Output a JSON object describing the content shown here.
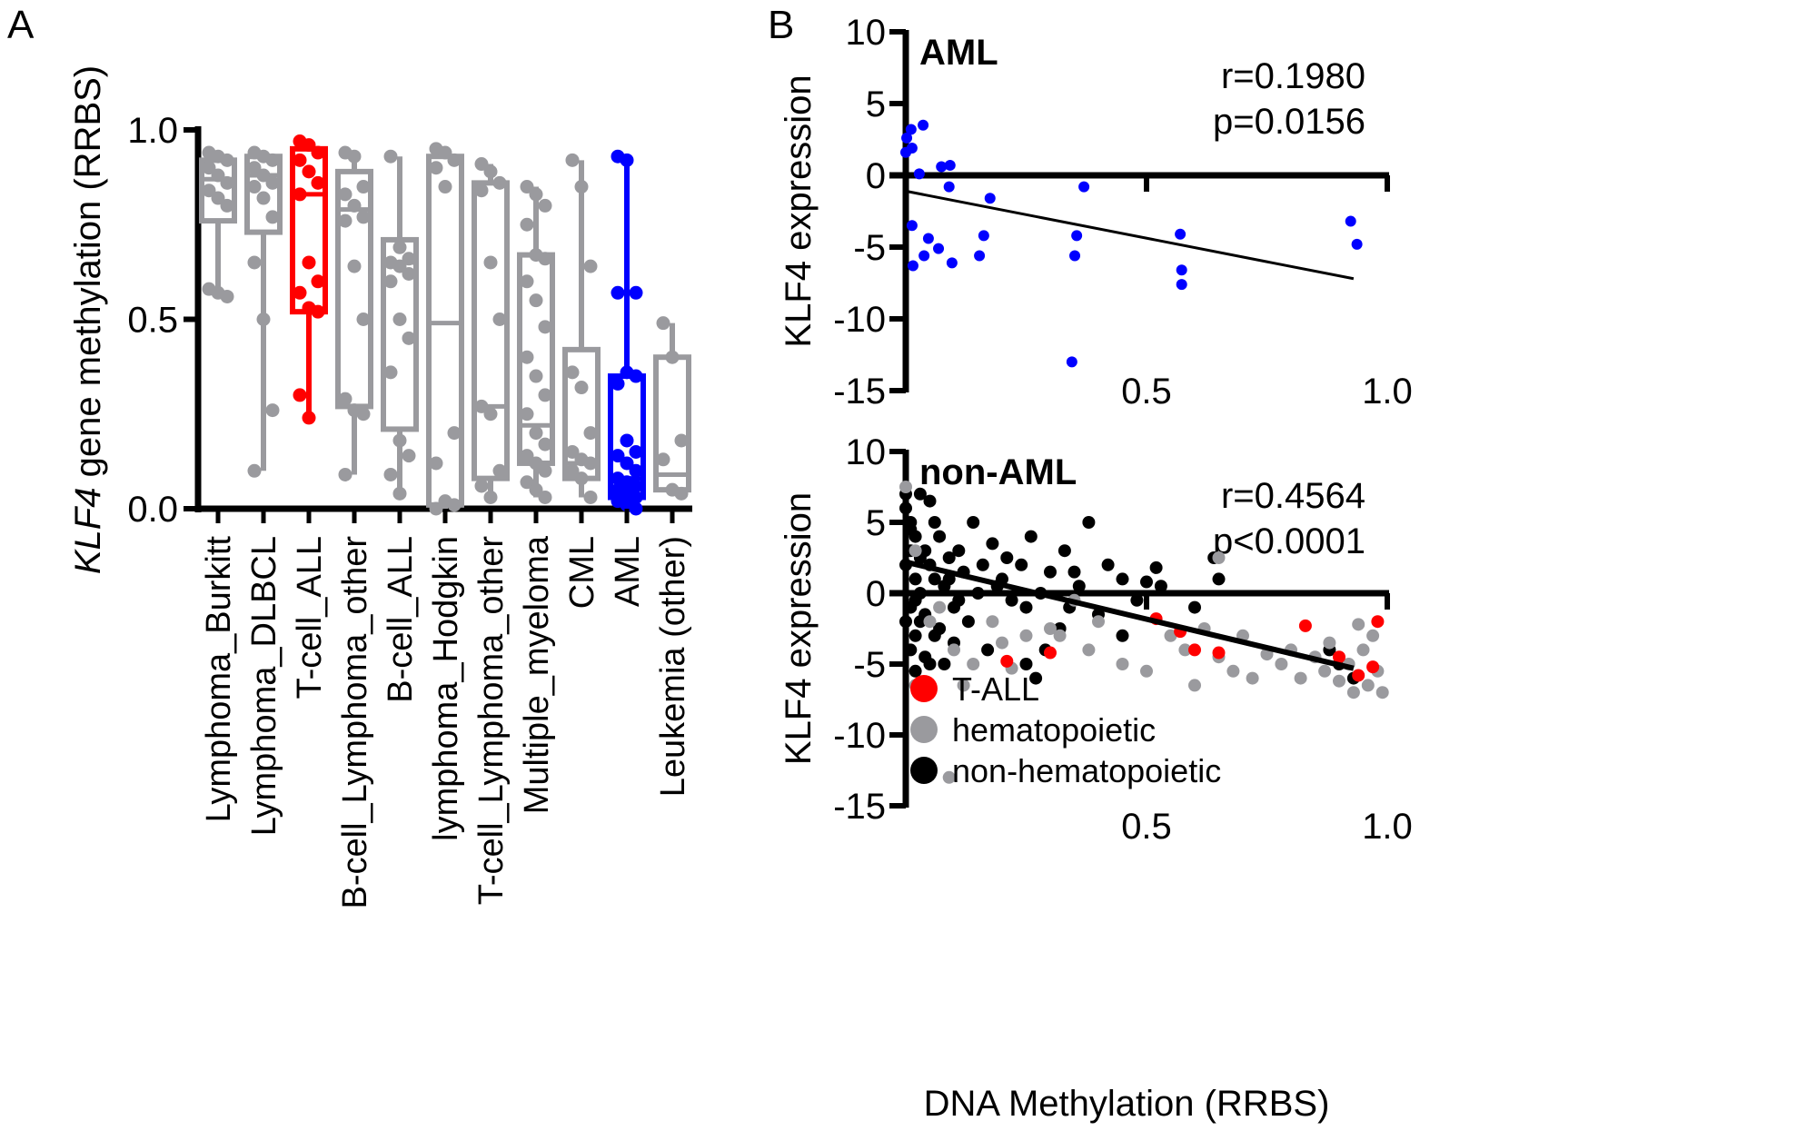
{
  "colors": {
    "gray": "#9a9a9e",
    "red": "#ff0000",
    "blue": "#0000ff",
    "black": "#000000"
  },
  "chart_data": [
    {
      "panel": "A",
      "type": "box",
      "ylabel_italic": "KLF4",
      "ylabel_rest": " gene methylation (RRBS)",
      "ylim": [
        0,
        1
      ],
      "yticks": [
        "0.0",
        "0.5",
        "1.0"
      ],
      "categories": [
        "Lymphoma_Burkitt",
        "Lymphoma_DLBCL",
        "T-cell_ALL",
        "B-cell_Lymphoma_other",
        "B-cell_ALL",
        "lymphoma_Hodgkin",
        "T-cell_Lymphoma_other",
        "Multiple_myeloma",
        "CML",
        "AML",
        "Leukemia (other)"
      ],
      "box_colors": [
        "gray",
        "gray",
        "red",
        "gray",
        "gray",
        "gray",
        "gray",
        "gray",
        "gray",
        "blue",
        "gray"
      ],
      "boxes": [
        {
          "min": 0.56,
          "q1": 0.76,
          "median": 0.87,
          "q3": 0.92,
          "max": 0.94,
          "points": [
            0.94,
            0.93,
            0.92,
            0.9,
            0.88,
            0.86,
            0.84,
            0.82,
            0.8,
            0.58,
            0.57,
            0.56
          ]
        },
        {
          "min": 0.1,
          "q1": 0.73,
          "median": 0.88,
          "q3": 0.93,
          "max": 0.94,
          "points": [
            0.94,
            0.93,
            0.92,
            0.9,
            0.88,
            0.86,
            0.85,
            0.82,
            0.77,
            0.65,
            0.5,
            0.26,
            0.1
          ]
        },
        {
          "min": 0.24,
          "q1": 0.52,
          "median": 0.83,
          "q3": 0.95,
          "max": 0.97,
          "points": [
            0.97,
            0.96,
            0.94,
            0.92,
            0.89,
            0.86,
            0.83,
            0.65,
            0.6,
            0.57,
            0.53,
            0.52,
            0.3,
            0.24
          ]
        },
        {
          "min": 0.09,
          "q1": 0.27,
          "median": 0.79,
          "q3": 0.89,
          "max": 0.94,
          "points": [
            0.94,
            0.93,
            0.85,
            0.83,
            0.8,
            0.77,
            0.76,
            0.64,
            0.5,
            0.29,
            0.26,
            0.25,
            0.09
          ]
        },
        {
          "min": 0.04,
          "q1": 0.21,
          "median": 0.65,
          "q3": 0.71,
          "max": 0.93,
          "points": [
            0.93,
            0.69,
            0.66,
            0.65,
            0.64,
            0.62,
            0.6,
            0.5,
            0.45,
            0.36,
            0.18,
            0.14,
            0.09,
            0.04
          ]
        },
        {
          "min": 0.0,
          "q1": 0.01,
          "median": 0.49,
          "q3": 0.93,
          "max": 0.95,
          "points": [
            0.95,
            0.94,
            0.92,
            0.9,
            0.85,
            0.2,
            0.12,
            0.02,
            0.01,
            0.0
          ]
        },
        {
          "min": 0.03,
          "q1": 0.08,
          "median": 0.27,
          "q3": 0.86,
          "max": 0.91,
          "points": [
            0.91,
            0.89,
            0.86,
            0.84,
            0.65,
            0.5,
            0.27,
            0.25,
            0.1,
            0.06,
            0.03
          ]
        },
        {
          "min": 0.03,
          "q1": 0.12,
          "median": 0.22,
          "q3": 0.67,
          "max": 0.85,
          "points": [
            0.85,
            0.83,
            0.8,
            0.75,
            0.67,
            0.66,
            0.6,
            0.55,
            0.48,
            0.4,
            0.35,
            0.3,
            0.25,
            0.2,
            0.17,
            0.14,
            0.12,
            0.1,
            0.07,
            0.05,
            0.03
          ]
        },
        {
          "min": 0.03,
          "q1": 0.08,
          "median": 0.12,
          "q3": 0.42,
          "max": 0.92,
          "points": [
            0.92,
            0.85,
            0.64,
            0.36,
            0.32,
            0.2,
            0.15,
            0.13,
            0.12,
            0.1,
            0.08,
            0.03
          ]
        },
        {
          "min": 0.0,
          "q1": 0.03,
          "median": 0.08,
          "q3": 0.35,
          "max": 0.93,
          "points": [
            0.93,
            0.92,
            0.57,
            0.57,
            0.36,
            0.35,
            0.33,
            0.18,
            0.15,
            0.14,
            0.12,
            0.1,
            0.08,
            0.07,
            0.06,
            0.05,
            0.04,
            0.03,
            0.02,
            0.01,
            0.0
          ]
        },
        {
          "min": 0.05,
          "q1": 0.05,
          "median": 0.09,
          "q3": 0.4,
          "max": 0.49,
          "points": [
            0.49,
            0.4,
            0.18,
            0.13,
            0.05,
            0.04
          ]
        }
      ]
    },
    {
      "panel": "B-top",
      "type": "scatter",
      "title": "AML",
      "ylabel": "KLF4 expression",
      "xlim": [
        0,
        1
      ],
      "ylim": [
        -15,
        10
      ],
      "xticks": [
        "0.5",
        "1.0"
      ],
      "yticks": [
        "10",
        "5",
        "0",
        "-5",
        "-10",
        "-15"
      ],
      "stats": [
        "r=0.1980",
        "p=0.0156"
      ],
      "trendline": [
        [
          0,
          -1.1
        ],
        [
          0.93,
          -7.2
        ]
      ],
      "series": [
        {
          "color": "blue",
          "points": [
            [
              0,
              1.6
            ],
            [
              0.002,
              2.6
            ],
            [
              0.011,
              3.2
            ],
            [
              0.013,
              1.9
            ],
            [
              0.036,
              3.5
            ],
            [
              0.028,
              0.1
            ],
            [
              0.074,
              0.6
            ],
            [
              0.092,
              0.7
            ],
            [
              0.09,
              -0.8
            ],
            [
              0.175,
              -1.6
            ],
            [
              0.013,
              -3.5
            ],
            [
              0.015,
              -6.3
            ],
            [
              0.047,
              -4.4
            ],
            [
              0.038,
              -5.6
            ],
            [
              0.068,
              -5.1
            ],
            [
              0.096,
              -6.1
            ],
            [
              0.153,
              -5.6
            ],
            [
              0.162,
              -4.2
            ],
            [
              0.37,
              -0.8
            ],
            [
              0.355,
              -4.2
            ],
            [
              0.351,
              -5.6
            ],
            [
              0.345,
              -13.0
            ],
            [
              0.57,
              -4.1
            ],
            [
              0.573,
              -6.6
            ],
            [
              0.573,
              -7.6
            ],
            [
              0.924,
              -3.2
            ],
            [
              0.937,
              -4.8
            ]
          ]
        }
      ]
    },
    {
      "panel": "B-bottom",
      "type": "scatter",
      "title": "non-AML",
      "ylabel": "KLF4 expression",
      "xlabel": "DNA Methylation (RRBS)",
      "xlim": [
        0,
        1
      ],
      "ylim": [
        -15,
        10
      ],
      "xticks": [
        "0.5",
        "1.0"
      ],
      "yticks": [
        "10",
        "5",
        "0",
        "-5",
        "-10",
        "-15"
      ],
      "stats": [
        "r=0.4564",
        "p<0.0001"
      ],
      "trendline": [
        [
          0,
          2.2
        ],
        [
          0.93,
          -5.3
        ]
      ],
      "legend": [
        {
          "label": "T-ALL",
          "color": "red"
        },
        {
          "label": "hematopoietic",
          "color": "gray"
        },
        {
          "label": "non-hematopoietic",
          "color": "black"
        }
      ],
      "series": [
        {
          "name": "non-hematopoietic",
          "color": "black",
          "points": [
            [
              0,
              6
            ],
            [
              0.01,
              5
            ],
            [
              0.01,
              3
            ],
            [
              0.02,
              4
            ],
            [
              0,
              2
            ],
            [
              0.02,
              1
            ],
            [
              0.03,
              0
            ],
            [
              0.01,
              -1
            ],
            [
              0,
              -2
            ],
            [
              0.02,
              -3
            ],
            [
              0.01,
              -4
            ],
            [
              0.03,
              -2
            ],
            [
              0.04,
              3
            ],
            [
              0.05,
              2
            ],
            [
              0.05,
              6.5
            ],
            [
              0.06,
              1
            ],
            [
              0.07,
              4
            ],
            [
              0.08,
              0.5
            ],
            [
              0.09,
              2.5
            ],
            [
              0.1,
              -1
            ],
            [
              0.11,
              3
            ],
            [
              0.12,
              1.5
            ],
            [
              0.13,
              -2
            ],
            [
              0.14,
              5
            ],
            [
              0.15,
              0
            ],
            [
              0.16,
              2
            ],
            [
              0.17,
              -4
            ],
            [
              0.18,
              3.5
            ],
            [
              0.2,
              1
            ],
            [
              0.22,
              -0.5
            ],
            [
              0.24,
              2
            ],
            [
              0.25,
              -1
            ],
            [
              0.26,
              4
            ],
            [
              0.28,
              0
            ],
            [
              0.3,
              1.5
            ],
            [
              0.32,
              -2.5
            ],
            [
              0.33,
              3
            ],
            [
              0.36,
              0.5
            ],
            [
              0.38,
              5
            ],
            [
              0.4,
              -1.5
            ],
            [
              0.42,
              2
            ],
            [
              0.45,
              1
            ],
            [
              0.48,
              -0.5
            ],
            [
              0.5,
              0.8
            ],
            [
              0.52,
              1.8
            ],
            [
              0.53,
              0.5
            ],
            [
              0.6,
              -1
            ],
            [
              0.64,
              2.5
            ],
            [
              0.65,
              1
            ],
            [
              0.04,
              -4.5
            ],
            [
              0.06,
              -3
            ],
            [
              0.08,
              -5
            ],
            [
              0.1,
              -3.5
            ],
            [
              0.25,
              -5
            ],
            [
              0.27,
              -6
            ],
            [
              0.29,
              -4
            ],
            [
              0.45,
              -3
            ],
            [
              0.93,
              -6
            ],
            [
              0.9,
              -5
            ],
            [
              0.88,
              -4
            ],
            [
              0,
              7
            ],
            [
              0.03,
              7
            ],
            [
              0.02,
              -5.5
            ],
            [
              0.05,
              -5
            ],
            [
              0.01,
              4.5
            ],
            [
              0.03,
              2.5
            ],
            [
              0.02,
              -0.5
            ],
            [
              0.04,
              -1.5
            ],
            [
              0.06,
              5
            ],
            [
              0.07,
              -2.5
            ],
            [
              0.09,
              1
            ],
            [
              0.11,
              -0.5
            ],
            [
              0.19,
              0.5
            ],
            [
              0.21,
              2.5
            ],
            [
              0.34,
              -1
            ],
            [
              0.35,
              1.5
            ]
          ]
        },
        {
          "name": "hematopoietic",
          "color": "gray",
          "points": [
            [
              0,
              7.5
            ],
            [
              0.02,
              3
            ],
            [
              0.05,
              -2
            ],
            [
              0.07,
              -1
            ],
            [
              0.1,
              -4
            ],
            [
              0.12,
              -6.5
            ],
            [
              0.14,
              -5
            ],
            [
              0.18,
              -2
            ],
            [
              0.2,
              -3.5
            ],
            [
              0.22,
              -5.3
            ],
            [
              0.25,
              -3
            ],
            [
              0.3,
              -2.5
            ],
            [
              0.32,
              -3
            ],
            [
              0.35,
              -0.5
            ],
            [
              0.38,
              -4
            ],
            [
              0.4,
              -2
            ],
            [
              0.45,
              -5
            ],
            [
              0.5,
              -5.5
            ],
            [
              0.55,
              -3
            ],
            [
              0.58,
              -4
            ],
            [
              0.6,
              -6.5
            ],
            [
              0.62,
              -2.5
            ],
            [
              0.65,
              -4.5
            ],
            [
              0.68,
              -5.5
            ],
            [
              0.7,
              -3
            ],
            [
              0.72,
              -6
            ],
            [
              0.75,
              -4.3
            ],
            [
              0.78,
              -5
            ],
            [
              0.8,
              -4
            ],
            [
              0.82,
              -6
            ],
            [
              0.85,
              -4.5
            ],
            [
              0.87,
              -5.5
            ],
            [
              0.88,
              -3.5
            ],
            [
              0.9,
              -6.2
            ],
            [
              0.92,
              -5
            ],
            [
              0.93,
              -7
            ],
            [
              0.95,
              -4
            ],
            [
              0.96,
              -6.5
            ],
            [
              0.97,
              -3
            ],
            [
              0.99,
              -7
            ],
            [
              0.65,
              2.5
            ],
            [
              0.09,
              -13
            ],
            [
              0.02,
              -6.5
            ],
            [
              0.98,
              -5.5
            ],
            [
              0.94,
              -2.2
            ]
          ]
        },
        {
          "name": "T-ALL",
          "color": "red",
          "points": [
            [
              0.52,
              -1.8
            ],
            [
              0.57,
              -2.7
            ],
            [
              0.6,
              -4
            ],
            [
              0.65,
              -4.2
            ],
            [
              0.83,
              -2.3
            ],
            [
              0.9,
              -4.5
            ],
            [
              0.94,
              -5.8
            ],
            [
              0.97,
              -5.2
            ],
            [
              0.98,
              -2
            ],
            [
              0.3,
              -4.2
            ],
            [
              0.21,
              -4.8
            ]
          ]
        }
      ]
    }
  ],
  "panel_labels": [
    "A",
    "B"
  ]
}
